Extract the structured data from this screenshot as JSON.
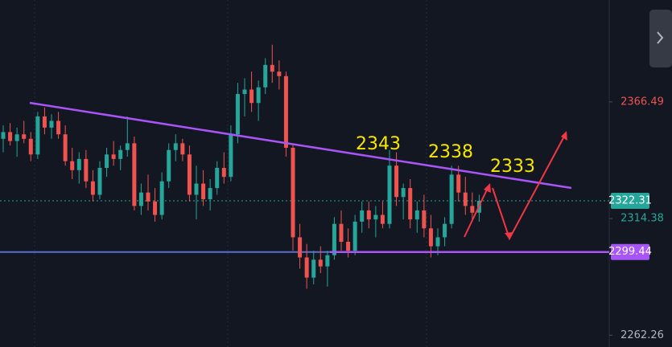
{
  "chart_data": {
    "type": "candlestick",
    "open": [
      2350,
      2353,
      2349,
      2352,
      2350,
      2343,
      2360,
      2355,
      2358,
      2352,
      2340,
      2336,
      2341,
      2331,
      2325,
      2337,
      2343,
      2341,
      2345,
      2348,
      2320,
      2326,
      2322,
      2316,
      2331,
      2345,
      2348,
      2343,
      2325,
      2330,
      2323,
      2328,
      2337,
      2333,
      2352,
      2370,
      2372,
      2366,
      2373,
      2383,
      2380,
      2378,
      2346,
      2306,
      2297,
      2288,
      2296,
      2293,
      2298,
      2312,
      2304,
      2300,
      2313,
      2318,
      2314,
      2316,
      2312,
      2338,
      2324,
      2328,
      2314,
      2318,
      2310,
      2302,
      2306,
      2312,
      2334,
      2326,
      2320,
      2317
    ],
    "high": [
      2356,
      2357,
      2355,
      2358,
      2353,
      2362,
      2364,
      2361,
      2362,
      2356,
      2346,
      2344,
      2345,
      2336,
      2340,
      2346,
      2349,
      2347,
      2360,
      2351,
      2330,
      2334,
      2328,
      2335,
      2348,
      2352,
      2350,
      2347,
      2338,
      2336,
      2332,
      2340,
      2344,
      2356,
      2375,
      2377,
      2380,
      2376,
      2386,
      2392,
      2385,
      2380,
      2348,
      2312,
      2303,
      2300,
      2302,
      2300,
      2315,
      2318,
      2310,
      2316,
      2322,
      2322,
      2320,
      2322,
      2345,
      2344,
      2330,
      2332,
      2322,
      2325,
      2316,
      2310,
      2315,
      2338,
      2338,
      2333,
      2326,
      2325
    ],
    "low": [
      2344,
      2347,
      2342,
      2348,
      2340,
      2341,
      2352,
      2350,
      2350,
      2338,
      2332,
      2330,
      2328,
      2322,
      2323,
      2333,
      2338,
      2336,
      2342,
      2318,
      2316,
      2318,
      2313,
      2314,
      2328,
      2340,
      2340,
      2322,
      2314,
      2320,
      2318,
      2325,
      2330,
      2331,
      2348,
      2360,
      2362,
      2358,
      2370,
      2375,
      2372,
      2342,
      2300,
      2292,
      2283,
      2285,
      2290,
      2284,
      2296,
      2300,
      2297,
      2298,
      2308,
      2310,
      2306,
      2310,
      2310,
      2320,
      2314,
      2310,
      2308,
      2306,
      2297,
      2298,
      2302,
      2310,
      2322,
      2316,
      2314,
      2313
    ],
    "close": [
      2353,
      2349,
      2352,
      2350,
      2343,
      2360,
      2355,
      2358,
      2352,
      2340,
      2336,
      2341,
      2331,
      2325,
      2337,
      2343,
      2341,
      2345,
      2348,
      2320,
      2326,
      2322,
      2316,
      2331,
      2345,
      2348,
      2343,
      2325,
      2330,
      2323,
      2328,
      2337,
      2333,
      2352,
      2370,
      2372,
      2366,
      2373,
      2383,
      2380,
      2378,
      2346,
      2306,
      2297,
      2288,
      2296,
      2293,
      2298,
      2312,
      2304,
      2300,
      2313,
      2318,
      2314,
      2316,
      2312,
      2338,
      2324,
      2328,
      2314,
      2318,
      2310,
      2302,
      2306,
      2312,
      2334,
      2326,
      2320,
      2317,
      2322.31
    ],
    "ylim": [
      2257,
      2412
    ],
    "yticks": [
      2366.49,
      2314.38,
      2262.26
    ],
    "last_price": 2322.31,
    "support_level": 2299.44,
    "annotations": [
      "2343",
      "2338",
      "2333"
    ],
    "up_color": "#26a69a",
    "down_color": "#ef5350"
  }
}
